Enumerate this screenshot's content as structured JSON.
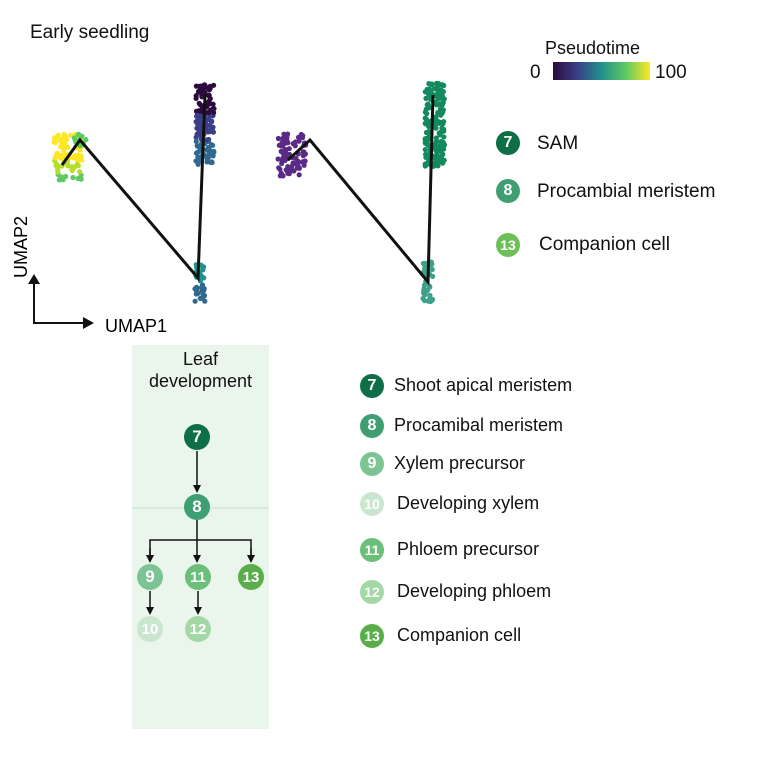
{
  "panel_title": "Early seedling",
  "colorbar": {
    "title": "Pseudotime",
    "min_label": "0",
    "max_label": "100",
    "colors": [
      "#2c0a3d",
      "#3b3f88",
      "#21908d",
      "#5ec962",
      "#fde725"
    ]
  },
  "axes": {
    "x_label": "UMAP1",
    "y_label": "UMAP2"
  },
  "umap_legend": [
    {
      "num": "7",
      "label": "SAM",
      "color": "#0e6e45"
    },
    {
      "num": "8",
      "label": "Procambial meristem",
      "color": "#3f9e72"
    },
    {
      "num": "13",
      "label": "Companion cell",
      "color": "#6dbe58"
    }
  ],
  "leaf_box": {
    "title_line1": "Leaf",
    "title_line2": "development",
    "bg": "#eaf5ec"
  },
  "tree_nodes": {
    "n7": {
      "num": "7",
      "color": "#0e6e45"
    },
    "n8": {
      "num": "8",
      "color": "#3f9e72"
    },
    "n9": {
      "num": "9",
      "color": "#7cc494"
    },
    "n11": {
      "num": "11",
      "color": "#6cbf7a"
    },
    "n13": {
      "num": "13",
      "color": "#5aae4a"
    },
    "n10": {
      "num": "10",
      "color": "#c9e6cf"
    },
    "n12": {
      "num": "12",
      "color": "#a3d8a6"
    }
  },
  "cell_legend": [
    {
      "num": "7",
      "label": "Shoot apical meristem",
      "color": "#0e6e45"
    },
    {
      "num": "8",
      "label": "Procamibal meristem",
      "color": "#3f9e72"
    },
    {
      "num": "9",
      "label": "Xylem precursor",
      "color": "#7cc494"
    },
    {
      "num": "10",
      "label": "Developing xylem",
      "color": "#c9e6cf"
    },
    {
      "num": "11",
      "label": "Phloem precursor",
      "color": "#6cbf7a"
    },
    {
      "num": "12",
      "label": "Developing phloem",
      "color": "#a3d8a6"
    },
    {
      "num": "13",
      "label": "Companion cell",
      "color": "#5aae4a"
    }
  ]
}
